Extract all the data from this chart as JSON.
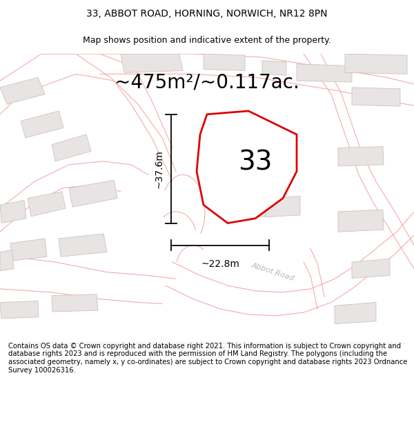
{
  "title_line1": "33, ABBOT ROAD, HORNING, NORWICH, NR12 8PN",
  "title_line2": "Map shows position and indicative extent of the property.",
  "area_text": "~475m²/~0.117ac.",
  "label_33": "33",
  "dim_vertical": "~37.6m",
  "dim_horizontal": "~22.8m",
  "road_label": "Abbot Road",
  "footer_text": "Contains OS data © Crown copyright and database right 2021. This information is subject to Crown copyright and database rights 2023 and is reproduced with the permission of HM Land Registry. The polygons (including the associated geometry, namely x, y co-ordinates) are subject to Crown copyright and database rights 2023 Ordnance Survey 100026316.",
  "bg_color": "#ffffff",
  "map_bg": "#ffffff",
  "plot_outline_color": "#dd0000",
  "road_outline_color": "#f5aaaa",
  "building_fill": "#e8e4e4",
  "title_fontsize": 10,
  "subtitle_fontsize": 9,
  "area_fontsize": 20,
  "label_fontsize": 28,
  "dim_fontsize": 10,
  "footer_fontsize": 7.2
}
